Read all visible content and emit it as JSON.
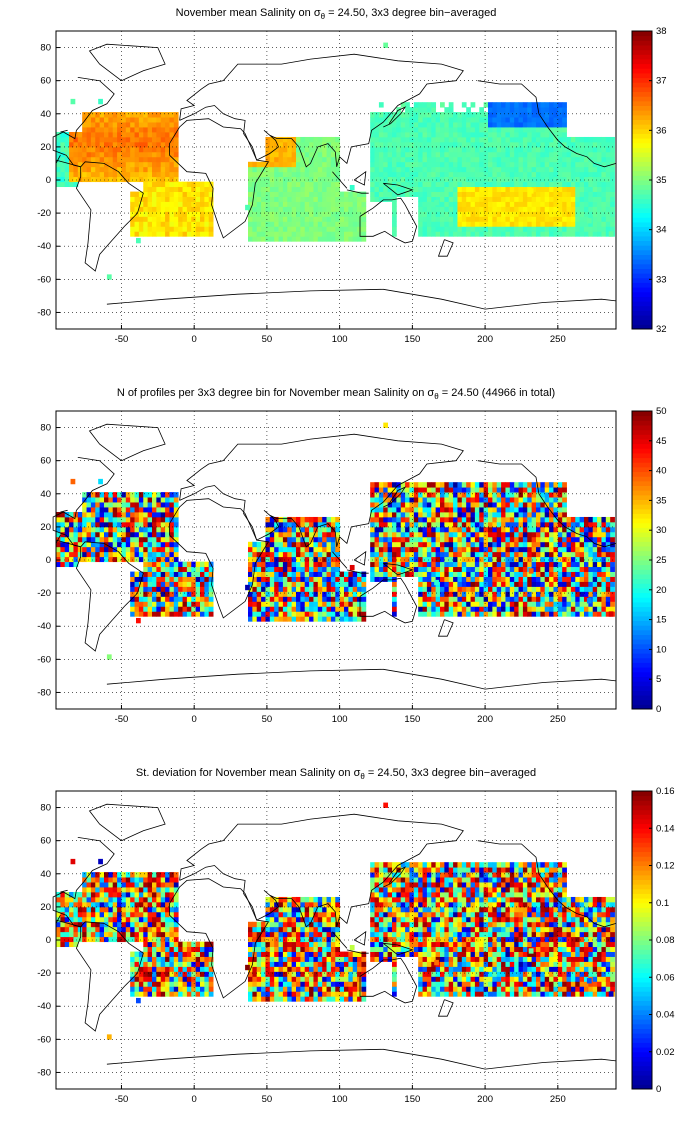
{
  "colors": {
    "jet": [
      "#00008f",
      "#0000ff",
      "#0080ff",
      "#00ffff",
      "#80ff80",
      "#ffff00",
      "#ff8000",
      "#ff0000",
      "#800000"
    ],
    "coast": "#000000",
    "grid": "#000000"
  },
  "map": {
    "x_ticks": [
      -50,
      0,
      50,
      100,
      150,
      200,
      250
    ],
    "y_ticks": [
      -80,
      -60,
      -40,
      -20,
      0,
      20,
      40,
      60,
      80
    ],
    "xlim": [
      -95,
      290
    ],
    "ylim": [
      -90,
      90
    ],
    "grid": "dotted"
  },
  "panels": [
    {
      "title_pre": "November mean Salinity on σ",
      "title_sub": "θ",
      "title_post": " = 24.50, 3x3 degree bin−averaged",
      "variable": "salinity",
      "colorbar": {
        "min": 32,
        "max": 38,
        "ticks": [
          32,
          33,
          34,
          35,
          36,
          37,
          38
        ]
      }
    },
    {
      "title_pre": "N of profiles per 3x3 degree bin for November mean Salinity on σ",
      "title_sub": "θ",
      "title_post": " = 24.50 (44966 in total)",
      "variable": "count",
      "colorbar": {
        "min": 0,
        "max": 50,
        "ticks": [
          0,
          5,
          10,
          15,
          20,
          25,
          30,
          35,
          40,
          45,
          50
        ]
      }
    },
    {
      "title_pre": "St. deviation for November mean Salinity on σ",
      "title_sub": "θ",
      "title_post": " = 24.50, 3x3 degree bin−averaged",
      "variable": "stdev",
      "colorbar": {
        "min": 0,
        "max": 0.16,
        "ticks": [
          0,
          0.02,
          0.04,
          0.06,
          0.08,
          0.1,
          0.12,
          0.14,
          0.16
        ]
      }
    }
  ]
}
